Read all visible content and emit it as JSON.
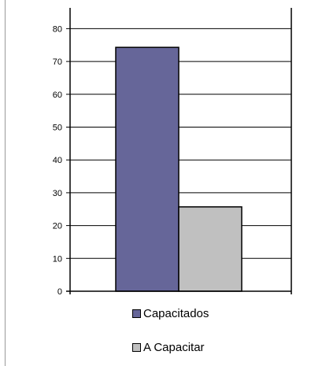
{
  "chart_data": {
    "type": "bar",
    "title": "",
    "xlabel": "",
    "ylabel": "",
    "categories": [
      "Capacitados",
      "A Capacitar"
    ],
    "values": [
      74.3,
      25.7
    ],
    "colors": [
      "#666699",
      "#c0c0c0"
    ],
    "ylim": [
      0,
      85
    ],
    "yticks": [
      0,
      10,
      20,
      30,
      40,
      50,
      60,
      70,
      80
    ],
    "grid": true,
    "legend_position": "bottom"
  }
}
